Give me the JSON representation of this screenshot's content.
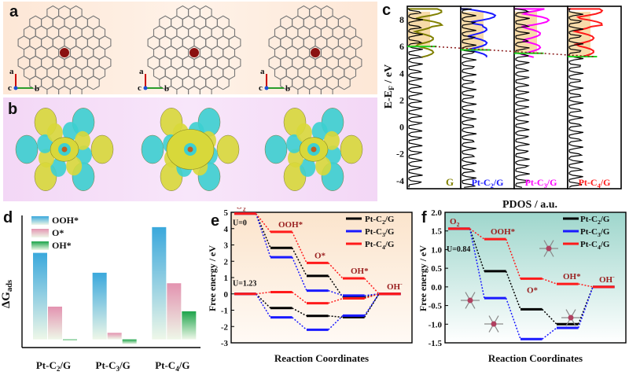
{
  "panels": {
    "a": {
      "label": "a",
      "axis": {
        "a": "a",
        "c": "c",
        "b": "b"
      }
    },
    "b": {
      "label": "b"
    },
    "c": {
      "label": "c",
      "ylabel": "E-E",
      "ylabel_sub": "F",
      "ylabel_unit": " / eV",
      "xlabel": "PDOS / a.u.",
      "yticks": [
        "8",
        "6",
        "4",
        "2",
        "0",
        "-2",
        "-4"
      ],
      "strips": [
        {
          "name": "G",
          "color": "#808000"
        },
        {
          "name": "Pt-C2/G",
          "color": "#1a1aff",
          "base": "Pt-C",
          "sub": "2",
          "tail": "/G"
        },
        {
          "name": "Pt-C3/G",
          "color": "#ff00ff",
          "base": "Pt-C",
          "sub": "3",
          "tail": "/G"
        },
        {
          "name": "Pt-C4/G",
          "color": "#ff1a1a",
          "base": "Pt-C",
          "sub": "4",
          "tail": "/G"
        }
      ]
    },
    "d": {
      "label": "d"
    },
    "e": {
      "label": "e"
    },
    "f": {
      "label": "f"
    }
  },
  "chart_data": [
    {
      "id": "d",
      "type": "bar",
      "ylabel": "ΔG",
      "ylabel_sub": "ads",
      "categories": [
        "Pt-C2/G",
        "Pt-C3/G",
        "Pt-C4/G"
      ],
      "category_labels": [
        {
          "base": "Pt-C",
          "sub": "2",
          "tail": "/G"
        },
        {
          "base": "Pt-C",
          "sub": "3",
          "tail": "/G"
        },
        {
          "base": "Pt-C",
          "sub": "4",
          "tail": "/G"
        }
      ],
      "series": [
        {
          "name": "OOH*",
          "color": "#3aa8dc",
          "values": [
            3.7,
            2.85,
            4.8
          ]
        },
        {
          "name": "O*",
          "color": "#e393b0",
          "values": [
            1.4,
            0.28,
            2.4
          ]
        },
        {
          "name": "OH*",
          "color": "#1da44a",
          "values": [
            -0.05,
            -0.2,
            1.2
          ]
        }
      ],
      "ylim": [
        -0.35,
        5.3
      ]
    },
    {
      "id": "e",
      "type": "line",
      "title": "",
      "xlabel": "Reaction Coordinates",
      "ylabel": "Free energy / eV",
      "ylim": [
        -3,
        5
      ],
      "yticks": [
        5,
        4,
        3,
        2,
        1,
        0,
        -1,
        -2,
        -3
      ],
      "steps": [
        "O2",
        "OOH*",
        "O*",
        "OH*",
        "OH-"
      ],
      "step_labels": [
        {
          "base": "O",
          "sub": "2",
          "sup": ""
        },
        {
          "base": "OOH*",
          "sub": "",
          "sup": ""
        },
        {
          "base": "O*",
          "sub": "",
          "sup": ""
        },
        {
          "base": "OH*",
          "sub": "",
          "sup": ""
        },
        {
          "base": "OH",
          "sub": "",
          "sup": "-"
        }
      ],
      "u_labels": [
        "U=0",
        "U=1.23"
      ],
      "ref_lines": [
        {
          "name": "U=0",
          "values": [
            4.92,
            3.8,
            1.9,
            0.95,
            0
          ]
        },
        {
          "name": "U=1.23",
          "values": [
            0,
            0.11,
            -0.57,
            -0.28,
            0
          ]
        }
      ],
      "series": [
        {
          "name": "Pt-C2/G",
          "base": "Pt-C",
          "sub": "2",
          "tail": "/G",
          "color": "#000000",
          "U0": [
            4.92,
            2.82,
            1.1,
            -0.2,
            0
          ],
          "U123": [
            0,
            -0.87,
            -1.35,
            -1.43,
            0
          ]
        },
        {
          "name": "Pt-C3/G",
          "base": "Pt-C",
          "sub": "3",
          "tail": "/G",
          "color": "#1a1aff",
          "U0": [
            4.92,
            2.25,
            0.2,
            -0.1,
            0
          ],
          "U123": [
            0,
            -1.44,
            -2.2,
            -1.33,
            0
          ]
        },
        {
          "name": "Pt-C4/G",
          "base": "Pt-C",
          "sub": "4",
          "tail": "/G",
          "color": "#ff1a1a",
          "U0": [
            4.92,
            3.8,
            1.9,
            0.95,
            0
          ],
          "U123": [
            0,
            0.11,
            -0.57,
            -0.28,
            0
          ]
        }
      ]
    },
    {
      "id": "f",
      "type": "line",
      "xlabel": "Reaction Coordinates",
      "ylabel": "Free energy / eV",
      "ylim": [
        -1.5,
        2.0
      ],
      "yticks": [
        "2.0",
        "1.5",
        "1.0",
        "0.5",
        "0.0",
        "-0.5",
        "-1.0",
        "-1.5"
      ],
      "steps": [
        "O2",
        "OOH*",
        "O*",
        "OH*",
        "OH-"
      ],
      "step_labels": [
        {
          "base": "O",
          "sub": "2",
          "sup": ""
        },
        {
          "base": "OOH*",
          "sub": "",
          "sup": ""
        },
        {
          "base": "O*",
          "sub": "",
          "sup": ""
        },
        {
          "base": "OH*",
          "sub": "",
          "sup": ""
        },
        {
          "base": "OH",
          "sub": "",
          "sup": "-"
        }
      ],
      "u_label": "U=0.84",
      "series": [
        {
          "name": "Pt-C2/G",
          "base": "Pt-C",
          "sub": "2",
          "tail": "/G",
          "color": "#000000",
          "values": [
            1.56,
            0.42,
            -0.6,
            -1.0,
            0
          ]
        },
        {
          "name": "Pt-C3/G",
          "base": "Pt-C",
          "sub": "3",
          "tail": "/G",
          "color": "#1a1aff",
          "values": [
            1.56,
            -0.3,
            -1.4,
            -1.1,
            0
          ]
        },
        {
          "name": "Pt-C4/G",
          "base": "Pt-C",
          "sub": "4",
          "tail": "/G",
          "color": "#ff1a1a",
          "values": [
            1.56,
            1.28,
            0.22,
            0.08,
            0
          ]
        }
      ]
    }
  ]
}
